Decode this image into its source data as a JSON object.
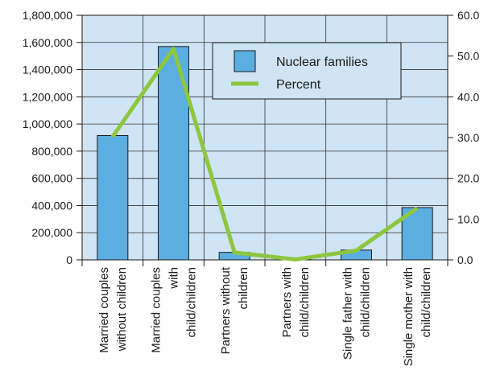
{
  "chart_data": {
    "type": "bar",
    "categories": [
      "Married couples without children",
      "Married couples with child/children",
      "Partners without children",
      "Partners with child/children",
      "Single father with child/children",
      "Single mother with child/children"
    ],
    "category_lines": [
      [
        "Married couples",
        "without children"
      ],
      [
        "Married couples",
        "with",
        "child/children"
      ],
      [
        "Partners without",
        "children"
      ],
      [
        "Partners with",
        "child/children"
      ],
      [
        "Single father with",
        "child/children"
      ],
      [
        "Single mother with",
        "child/children"
      ]
    ],
    "series": [
      {
        "name": "Nuclear families",
        "type": "bar",
        "axis": "left",
        "color": "#5aaee0",
        "values": [
          915000,
          1570000,
          55000,
          5000,
          72000,
          385000
        ]
      },
      {
        "name": "Percent",
        "type": "line",
        "axis": "right",
        "color": "#8dc63f",
        "values": [
          30.2,
          51.8,
          1.8,
          0.1,
          2.3,
          12.7
        ]
      }
    ],
    "ylim": [
      0,
      1800000
    ],
    "y_ticks": [
      "0",
      "200,000",
      "400,000",
      "600,000",
      "800,000",
      "1,000,000",
      "1,200,000",
      "1,400,000",
      "1,600,000",
      "1,800,000"
    ],
    "y2lim": [
      0,
      60
    ],
    "y2_ticks": [
      "0.0",
      "10.0",
      "20.0",
      "30.0",
      "40.0",
      "50.0",
      "60.0"
    ],
    "xlabel": "",
    "ylabel": "",
    "y2label": "",
    "grid": true,
    "legend": "top-right",
    "plot_background": "#cfe4f4"
  }
}
